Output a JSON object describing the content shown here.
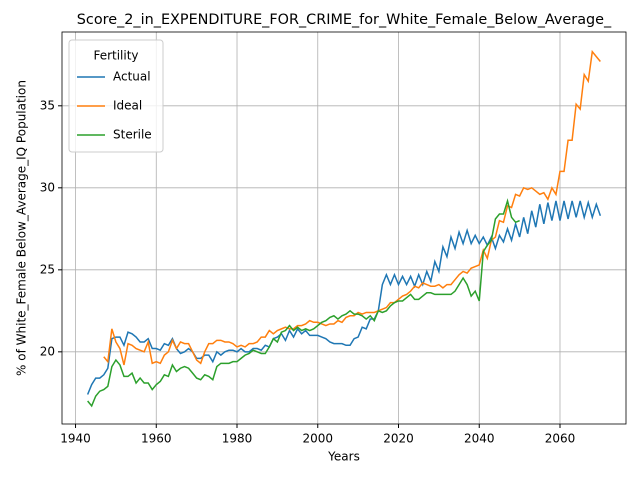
{
  "chart_data": {
    "type": "line",
    "title": "Score_2_in_EXPENDITURE_FOR_CRIME_for_White_Female_Below_Average_",
    "xlabel": "Years",
    "ylabel": "% of White_Female Below_Average_IQ Population",
    "legend_title": "Fertility",
    "legend": "upper left",
    "grid": true,
    "xlim": [
      1936.65,
      2076.35
    ],
    "ylim": [
      15.6,
      39.5
    ],
    "xticks": [
      1940,
      1960,
      1980,
      2000,
      2020,
      2040,
      2060
    ],
    "yticks": [
      20,
      25,
      30,
      35
    ],
    "x": [
      1943,
      1944,
      1945,
      1946,
      1947,
      1948,
      1949,
      1950,
      1951,
      1952,
      1953,
      1954,
      1955,
      1956,
      1957,
      1958,
      1959,
      1960,
      1961,
      1962,
      1963,
      1964,
      1965,
      1966,
      1967,
      1968,
      1969,
      1970,
      1971,
      1972,
      1973,
      1974,
      1975,
      1976,
      1977,
      1978,
      1979,
      1980,
      1981,
      1982,
      1983,
      1984,
      1985,
      1986,
      1987,
      1988,
      1989,
      1990,
      1991,
      1992,
      1993,
      1994,
      1995,
      1996,
      1997,
      1998,
      1999,
      2000,
      2001,
      2002,
      2003,
      2004,
      2005,
      2006,
      2007,
      2008,
      2009,
      2010,
      2011,
      2012,
      2013,
      2014,
      2015,
      2016,
      2017,
      2018,
      2019,
      2020,
      2021,
      2022,
      2023,
      2024,
      2025,
      2026,
      2027,
      2028,
      2029,
      2030,
      2031,
      2032,
      2033,
      2034,
      2035,
      2036,
      2037,
      2038,
      2039,
      2040,
      2041,
      2042,
      2043,
      2044,
      2045,
      2046,
      2047,
      2048,
      2049,
      2050,
      2051,
      2052,
      2053,
      2054,
      2055,
      2056,
      2057,
      2058,
      2059,
      2060,
      2061,
      2062,
      2063,
      2064,
      2065,
      2066,
      2067,
      2068,
      2069,
      2070
    ],
    "series": [
      {
        "name": "Actual",
        "color": "#1f77b4",
        "values": [
          17.4,
          18.0,
          18.4,
          18.4,
          18.6,
          19.0,
          20.8,
          20.9,
          20.9,
          20.4,
          21.2,
          21.1,
          20.9,
          20.6,
          20.6,
          20.8,
          20.2,
          20.2,
          20.1,
          20.5,
          20.4,
          20.8,
          20.2,
          19.9,
          20.0,
          20.2,
          20.0,
          19.6,
          19.6,
          19.8,
          19.8,
          19.4,
          20.0,
          19.8,
          20.0,
          20.1,
          20.1,
          20.0,
          20.2,
          20.0,
          20.0,
          20.2,
          20.2,
          20.1,
          20.4,
          20.3,
          20.8,
          20.9,
          21.1,
          20.7,
          21.3,
          20.9,
          21.4,
          21.1,
          21.3,
          21.0,
          21.0,
          21.0,
          20.9,
          20.8,
          20.6,
          20.5,
          20.5,
          20.5,
          20.4,
          20.4,
          20.8,
          20.9,
          21.5,
          21.4,
          22.0,
          22.0,
          22.5,
          24.1,
          24.7,
          24.1,
          24.7,
          24.1,
          24.6,
          24.1,
          24.6,
          24.0,
          24.7,
          24.1,
          24.9,
          24.3,
          25.5,
          24.9,
          26.4,
          25.8,
          27.0,
          26.3,
          27.3,
          26.6,
          27.4,
          26.6,
          27.1,
          26.6,
          27.0,
          26.5,
          27.0,
          26.3,
          27.1,
          26.7,
          27.5,
          26.8,
          27.8,
          27.0,
          28.2,
          27.2,
          28.6,
          27.6,
          29.0,
          27.8,
          29.1,
          28.0,
          29.2,
          28.0,
          29.2,
          28.1,
          29.2,
          28.2,
          29.2,
          28.2,
          29.1,
          28.2,
          29.0,
          28.3
        ]
      },
      {
        "name": "Ideal",
        "color": "#ff7f0e",
        "values": [
          null,
          null,
          null,
          null,
          19.7,
          19.4,
          21.4,
          20.6,
          20.2,
          19.2,
          20.5,
          20.4,
          20.2,
          20.1,
          20.0,
          20.6,
          19.3,
          19.4,
          19.3,
          19.8,
          20.0,
          20.7,
          20.2,
          20.6,
          20.5,
          20.5,
          20.0,
          19.5,
          19.3,
          20.0,
          20.5,
          20.5,
          20.7,
          20.7,
          20.6,
          20.6,
          20.5,
          20.3,
          20.4,
          20.3,
          20.5,
          20.5,
          20.6,
          20.9,
          20.9,
          21.3,
          21.1,
          21.3,
          21.4,
          21.5,
          21.4,
          21.4,
          21.6,
          21.6,
          21.7,
          21.9,
          21.8,
          21.8,
          21.7,
          21.6,
          21.7,
          21.7,
          21.9,
          21.8,
          22.1,
          22.2,
          22.2,
          22.4,
          22.3,
          22.4,
          22.4,
          22.4,
          22.5,
          22.6,
          22.7,
          23.0,
          23.0,
          23.2,
          23.4,
          23.5,
          23.7,
          24.0,
          23.9,
          24.2,
          24.1,
          24.0,
          24.0,
          24.1,
          23.9,
          24.1,
          24.1,
          24.4,
          24.7,
          24.9,
          24.8,
          25.1,
          25.2,
          25.3,
          26.2,
          25.7,
          26.8,
          27.0,
          28.0,
          27.9,
          28.9,
          28.8,
          29.6,
          29.5,
          30.0,
          29.9,
          30.0,
          29.8,
          29.6,
          29.7,
          29.3,
          30.0,
          29.6,
          31.0,
          31.0,
          32.9,
          32.9,
          35.1,
          34.8,
          36.9,
          36.5,
          38.3,
          38.0,
          37.7
        ]
      },
      {
        "name": "Sterile",
        "color": "#2ca02c",
        "values": [
          17.0,
          16.7,
          17.3,
          17.6,
          17.7,
          17.9,
          19.1,
          19.5,
          19.2,
          18.5,
          18.5,
          18.7,
          18.1,
          18.4,
          18.1,
          18.1,
          17.7,
          18.0,
          18.2,
          18.6,
          18.5,
          19.2,
          18.8,
          19.0,
          19.1,
          19.0,
          18.7,
          18.4,
          18.3,
          18.6,
          18.5,
          18.3,
          19.1,
          19.3,
          19.3,
          19.3,
          19.4,
          19.4,
          19.6,
          19.8,
          19.9,
          20.1,
          20.0,
          19.9,
          19.9,
          20.3,
          20.8,
          20.6,
          21.2,
          21.3,
          21.6,
          21.3,
          21.5,
          21.3,
          21.4,
          21.3,
          21.4,
          21.6,
          21.8,
          21.9,
          22.1,
          22.2,
          22.0,
          22.2,
          22.3,
          22.5,
          22.3,
          22.3,
          22.2,
          22.0,
          22.2,
          21.9,
          22.5,
          22.4,
          22.5,
          22.8,
          23.0,
          23.1,
          23.1,
          23.3,
          23.5,
          23.2,
          23.2,
          23.4,
          23.6,
          23.6,
          23.5,
          23.5,
          23.5,
          23.5,
          23.5,
          23.7,
          24.1,
          24.5,
          24.1,
          23.4,
          23.7,
          23.1,
          26.1,
          26.5,
          26.8,
          28.1,
          28.4,
          28.4,
          29.2,
          28.2,
          27.9,
          28.0,
          null,
          null,
          null,
          null,
          null,
          null,
          null,
          null,
          null,
          null,
          null,
          null,
          null,
          null,
          null,
          null,
          null,
          null,
          null,
          null
        ]
      }
    ]
  }
}
